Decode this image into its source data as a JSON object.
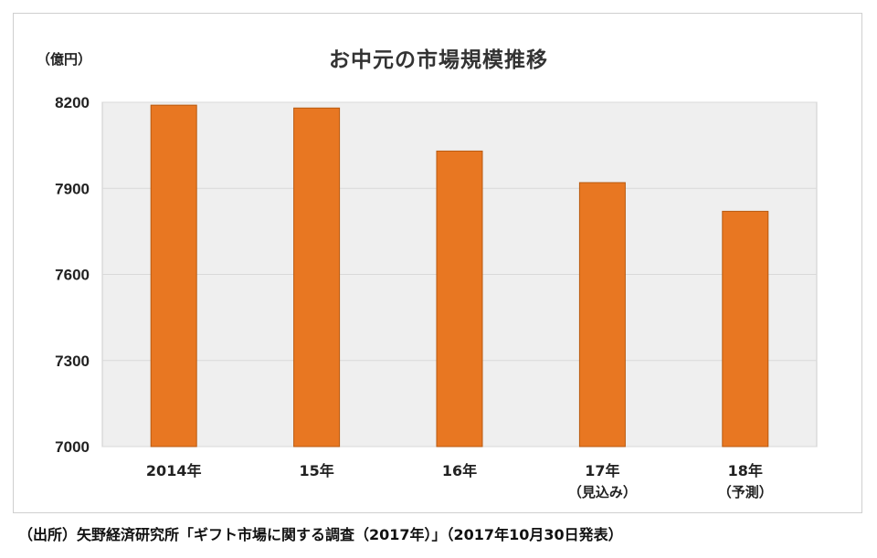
{
  "chart_data": {
    "type": "bar",
    "title": "お中元の市場規模推移",
    "unit_label": "（億円）",
    "categories": [
      "2014年",
      "15年",
      "16年",
      "17年",
      "18年"
    ],
    "category_sublabels": [
      "",
      "",
      "",
      "（見込み）",
      "（予測）"
    ],
    "values": [
      8190,
      8180,
      8030,
      7920,
      7820
    ],
    "ylim": [
      7000,
      8200
    ],
    "yticks": [
      7000,
      7300,
      7600,
      7900,
      8200
    ],
    "grid": true,
    "colors": {
      "bar": "#E87722",
      "bar_edge": "#B85A10",
      "plot_bg": "#EFEFEF",
      "grid": "#D9D9D9"
    }
  },
  "source_note": "（出所）矢野経済研究所「ギフト市場に関する調査（2017年）」（2017年10月30日発表）"
}
